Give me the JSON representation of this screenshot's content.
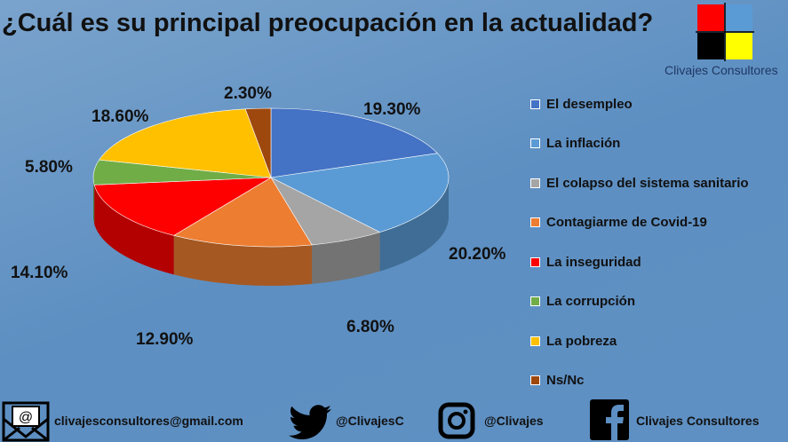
{
  "title": "¿Cuál es su principal preocupación en la actualidad?",
  "brand": "Clivajes Consultores",
  "logo_colors": [
    "#ff0000",
    "#5b9bd5",
    "#000000",
    "#ffff00"
  ],
  "chart_data": {
    "type": "pie",
    "title": "¿Cuál es su principal preocupación en la actualidad?",
    "three_d": true,
    "legend_position": "right",
    "categories": [
      "El desempleo",
      "La inflación",
      "El colapso del sistema sanitario",
      "Contagiarme de Covid-19",
      "La inseguridad",
      "La corrupción",
      "La pobreza",
      "Ns/Nc"
    ],
    "values": [
      19.3,
      20.2,
      6.8,
      12.9,
      14.1,
      5.8,
      18.6,
      2.3
    ],
    "labels": [
      "19.30%",
      "20.20%",
      "6.80%",
      "12.90%",
      "14.10%",
      "5.80%",
      "18.60%",
      "2.30%"
    ],
    "colors": [
      "#4472c4",
      "#5b9bd5",
      "#a5a5a5",
      "#ed7d31",
      "#ff0000",
      "#70ad47",
      "#ffc000",
      "#9e480e"
    ]
  },
  "footer": {
    "email": "clivajesconsultores@gmail.com",
    "twitter": "@ClivajesC",
    "instagram": "@Clivajes",
    "facebook": "Clivajes Consultores"
  }
}
